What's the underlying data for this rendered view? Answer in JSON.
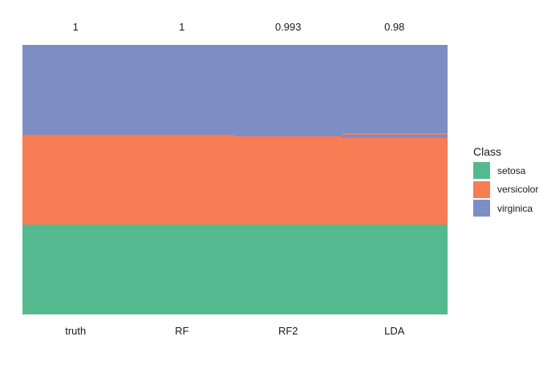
{
  "chart_data": {
    "type": "bar",
    "variant": "stacked-unit-tiles-class-membership",
    "title": "",
    "xlabel": "",
    "ylabel": "",
    "grid": false,
    "categories": [
      "truth",
      "RF",
      "RF2",
      "LDA"
    ],
    "accuracy_labels": [
      "1",
      "1",
      "0.993",
      "0.98"
    ],
    "classes": [
      "setosa",
      "versicolor",
      "virginica"
    ],
    "colors": {
      "setosa": "#55B990",
      "versicolor": "#F87C54",
      "virginica": "#7D8EC4"
    },
    "total_n": 150,
    "columns": [
      {
        "label": "truth",
        "accuracy": "1",
        "segments_top_to_bottom": [
          {
            "class": "virginica",
            "count": 50
          },
          {
            "class": "versicolor",
            "count": 50
          },
          {
            "class": "setosa",
            "count": 50
          }
        ]
      },
      {
        "label": "RF",
        "accuracy": "1",
        "segments_top_to_bottom": [
          {
            "class": "virginica",
            "count": 50
          },
          {
            "class": "versicolor",
            "count": 50
          },
          {
            "class": "setosa",
            "count": 50
          }
        ]
      },
      {
        "label": "RF2",
        "accuracy": "0.993",
        "segments_top_to_bottom": [
          {
            "class": "virginica",
            "count": 51
          },
          {
            "class": "versicolor",
            "count": 49
          },
          {
            "class": "setosa",
            "count": 50
          }
        ]
      },
      {
        "label": "LDA",
        "accuracy": "0.98",
        "segments_top_to_bottom": [
          {
            "class": "virginica",
            "count": 49
          },
          {
            "class": "versicolor",
            "count": 1
          },
          {
            "class": "virginica",
            "count": 2
          },
          {
            "class": "versicolor",
            "count": 48
          },
          {
            "class": "setosa",
            "count": 50
          }
        ]
      }
    ],
    "legend": {
      "title": "Class",
      "position": "right",
      "entries": [
        "setosa",
        "versicolor",
        "virginica"
      ]
    }
  }
}
